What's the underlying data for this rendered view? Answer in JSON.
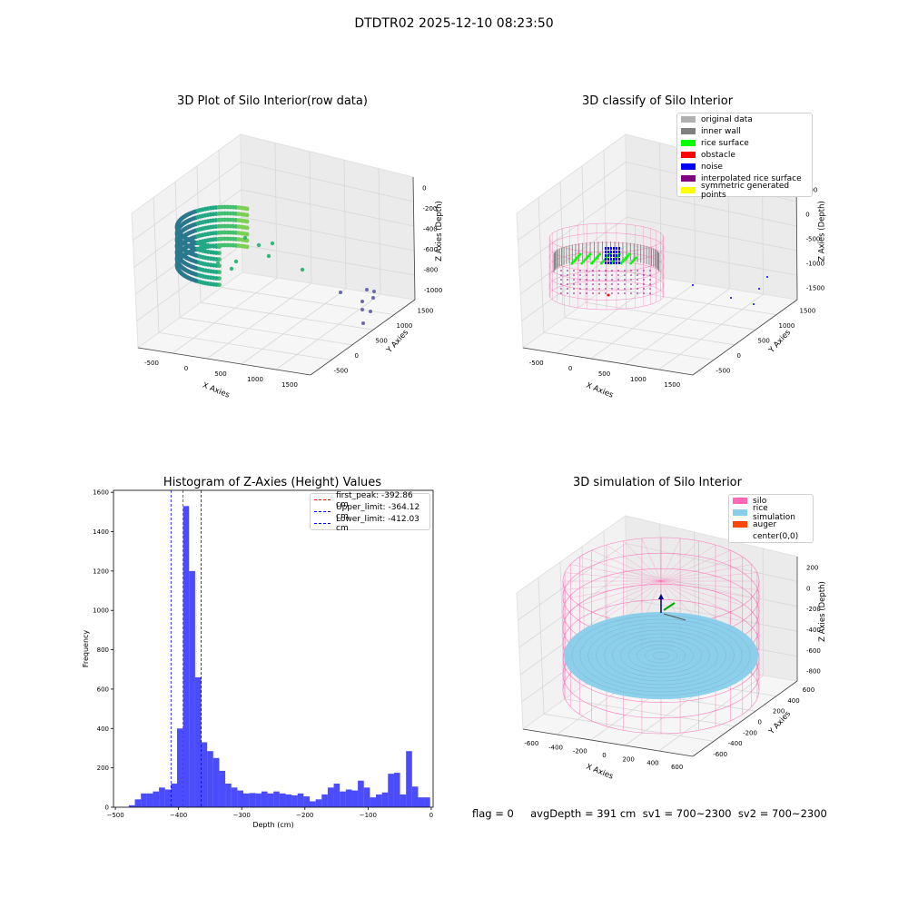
{
  "suptitle": "DTDTR02 2025-12-10 08:23:50",
  "footer": "flag = 0     avgDepth = 391 cm  sv1 = 700~2300  sv2 = 700~2300",
  "colors": {
    "hist_bar": "#0000ff",
    "first_peak": "#ff0000",
    "limits": "#0000ff",
    "original": "#b0b0b0",
    "inner_wall": "#808080",
    "rice_surface": "#00ff00",
    "obstacle": "#ff0000",
    "noise": "#0000ff",
    "interpolated": "#800080",
    "symmetric": "#ffff00",
    "silo": "#ff69b4",
    "rice_sim": "#87ceeb",
    "auger": "#ff4500"
  },
  "chart_data": [
    {
      "type": "scatter",
      "title": "3D Plot of Silo Interior(row data)",
      "xlabel": "X Axies",
      "ylabel": "Y Axies",
      "zlabel": "Z Axies (Depth)",
      "x_ticks": [
        "-500",
        "0",
        "500",
        "1000",
        "1500"
      ],
      "y_ticks": [
        "-500",
        "0",
        "500",
        "1000",
        "1500"
      ],
      "z_ticks": [
        "0",
        "-200",
        "-400",
        "-600",
        "-800",
        "-1000"
      ],
      "grid": true,
      "colormap": "viridis"
    },
    {
      "type": "scatter",
      "title": "3D classify of Silo Interior",
      "xlabel": "X Axies",
      "ylabel": "Y Axies",
      "zlabel": "Z Axies (Depth)",
      "x_ticks": [
        "-500",
        "0",
        "500",
        "1000",
        "1500"
      ],
      "y_ticks": [
        "-500",
        "0",
        "500",
        "1000",
        "1500"
      ],
      "z_ticks": [
        "500",
        "0",
        "-500",
        "-1000",
        "-1500"
      ],
      "grid": true,
      "legend_position": "top-right",
      "legend": [
        {
          "label": "original data",
          "color": "#b0b0b0"
        },
        {
          "label": "inner wall",
          "color": "#808080"
        },
        {
          "label": "rice surface",
          "color": "#00ff00"
        },
        {
          "label": "obstacle",
          "color": "#ff0000"
        },
        {
          "label": "noise",
          "color": "#0000ff"
        },
        {
          "label": "interpolated rice surface",
          "color": "#800080"
        },
        {
          "label": "symmetric generated points",
          "color": "#ffff00"
        }
      ]
    },
    {
      "type": "bar",
      "title": "Histogram of Z-Axies (Height) Values",
      "xlabel": "Depth (cm)",
      "ylabel": "Frequency",
      "xlim": [
        -503,
        3
      ],
      "ylim": [
        0,
        1610
      ],
      "x_ticks": [
        -500,
        -400,
        -300,
        -200,
        -100,
        0
      ],
      "y_ticks": [
        0,
        200,
        400,
        600,
        800,
        1000,
        1200,
        1400,
        1600
      ],
      "bins": {
        "start": -478.7,
        "width": 9.54,
        "values": [
          10,
          40,
          70,
          70,
          80,
          100,
          90,
          120,
          400,
          1530,
          1200,
          660,
          330,
          285,
          250,
          185,
          120,
          100,
          85,
          70,
          72,
          70,
          80,
          70,
          80,
          70,
          65,
          60,
          70,
          55,
          30,
          40,
          65,
          100,
          120,
          80,
          90,
          85,
          135,
          100,
          50,
          65,
          75,
          170,
          175,
          65,
          285,
          105,
          50,
          50
        ]
      },
      "vlines": [
        {
          "label": "first_peak: -392.86 cm",
          "x": -392.86,
          "color": "#ff0000"
        },
        {
          "label": "Upper_limit: -364.12 cm",
          "x": -364.12,
          "color": "#0000ff"
        },
        {
          "label": "Lower_limit: -412.03 cm",
          "x": -412.03,
          "color": "#0000ff"
        }
      ],
      "legend_position": "top-right"
    },
    {
      "type": "scatter",
      "title": "3D simulation of Silo Interior",
      "xlabel": "X Axies",
      "ylabel": "Y Axies",
      "zlabel": "Z Axies (Depth)",
      "x_ticks": [
        "-600",
        "-400",
        "-200",
        "0",
        "200",
        "400",
        "600"
      ],
      "y_ticks": [
        "-600",
        "-400",
        "-200",
        "0",
        "200",
        "400",
        "600"
      ],
      "z_ticks": [
        "200",
        "0",
        "-200",
        "-400",
        "-600",
        "-800"
      ],
      "grid": true,
      "legend_position": "top-right",
      "legend": [
        {
          "label": "silo",
          "color": "#ff69b4"
        },
        {
          "label": "rice simulation",
          "color": "#87ceeb"
        },
        {
          "label": "auger",
          "color": "#ff4500"
        },
        {
          "label": "center(0,0)",
          "color": ""
        }
      ]
    }
  ]
}
